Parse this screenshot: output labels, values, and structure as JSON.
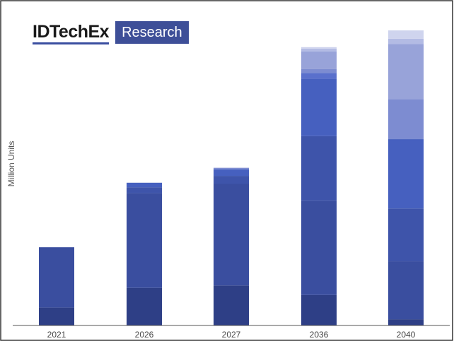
{
  "branding": {
    "logo_text": "IDTechEx",
    "logo_tag": "Research"
  },
  "chart_data": {
    "type": "bar",
    "stacked": true,
    "title": "",
    "xlabel": "",
    "ylabel": "Million Units",
    "categories": [
      "2021",
      "2026",
      "2027",
      "2036",
      "2040"
    ],
    "ylim": [
      0,
      100
    ],
    "grid": false,
    "legend": "none",
    "series": [
      {
        "color": "#2e3f86",
        "values": [
          6.0,
          12.6,
          13.4,
          10.2,
          2.1
        ]
      },
      {
        "color": "#3a4e9f",
        "values": [
          20.2,
          31.7,
          34.0,
          31.6,
          19.4
        ]
      },
      {
        "color": "#3e54aa",
        "values": [
          0.0,
          2.0,
          2.7,
          21.6,
          17.7
        ]
      },
      {
        "color": "#4660bf",
        "values": [
          0.0,
          1.5,
          2.2,
          19.3,
          23.2
        ]
      },
      {
        "color": "#5a70cc",
        "values": [
          0.0,
          0.0,
          0.0,
          1.8,
          0.0
        ]
      },
      {
        "color": "#7d8cd1",
        "values": [
          0.0,
          0.0,
          0.5,
          1.4,
          13.4
        ]
      },
      {
        "color": "#98a3d9",
        "values": [
          0.0,
          0.0,
          0.0,
          5.9,
          18.4
        ]
      },
      {
        "color": "#b3bbe4",
        "values": [
          0.0,
          0.0,
          0.0,
          0.9,
          1.8
        ]
      },
      {
        "color": "#cfd4ee",
        "values": [
          0.0,
          0.0,
          0.0,
          0.5,
          2.8
        ]
      }
    ]
  },
  "colors": {
    "axis": "#555555",
    "frame": "#333333",
    "tick_text": "#444444"
  }
}
